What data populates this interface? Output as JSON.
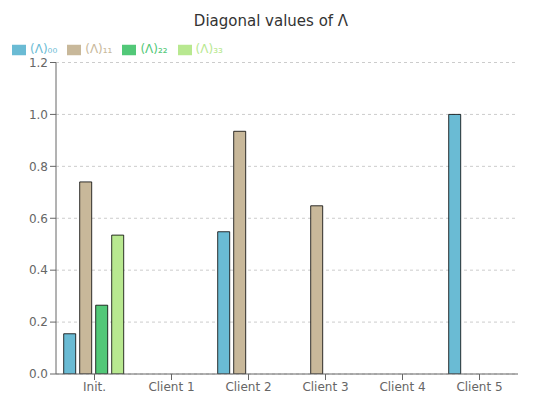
{
  "chart_data": {
    "type": "bar",
    "title": "Diagonal values of Λ",
    "categories": [
      "Init.",
      "Client 1",
      "Client 2",
      "Client 3",
      "Client 4",
      "Client 5"
    ],
    "series": [
      {
        "name": "(Λ)₀₀",
        "color": "#6abbd4",
        "values": [
          0.155,
          0.0,
          0.548,
          0.0,
          0.0,
          1.0
        ]
      },
      {
        "name": "(Λ)₁₁",
        "color": "#c8b89a",
        "values": [
          0.74,
          0.0,
          0.935,
          0.648,
          0.0,
          0.0
        ]
      },
      {
        "name": "(Λ)₂₂",
        "color": "#52c878",
        "values": [
          0.265,
          0.0,
          0.0,
          0.0,
          0.0,
          0.0
        ]
      },
      {
        "name": "(Λ)₃₃",
        "color": "#b8e890",
        "values": [
          0.535,
          0.0,
          0.0,
          0.0,
          0.0,
          0.0
        ]
      }
    ],
    "ylim": [
      0,
      1.2
    ],
    "yticks": [
      {
        "value": 0.0,
        "label": "0.0"
      },
      0.2,
      0.4,
      0.6,
      0.8,
      {
        "value": 1.0,
        "label": "1.0"
      },
      1.2
    ],
    "grid": true,
    "legend": "upper left"
  }
}
